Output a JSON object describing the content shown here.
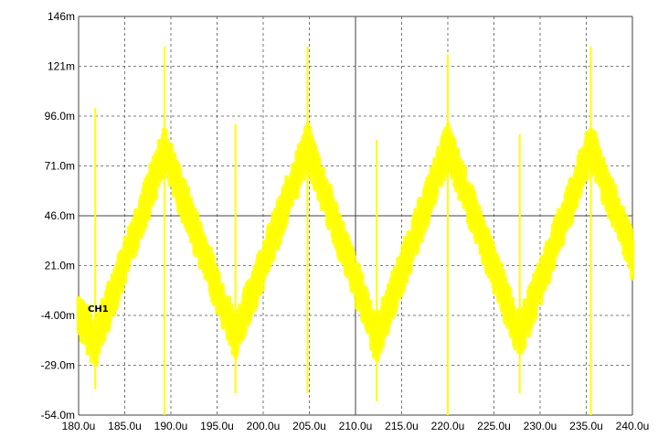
{
  "chart_data": {
    "type": "line",
    "title": "",
    "xlabel": "",
    "ylabel": "",
    "xlim": [
      180.0,
      240.0
    ],
    "ylim": [
      -54.0,
      146.0
    ],
    "x_unit": "u",
    "y_unit": "m",
    "grid": true,
    "legend": "none",
    "x_ticks": [
      "180.0u",
      "185.0u",
      "190.0u",
      "195.0u",
      "200.0u",
      "205.0u",
      "210.0u",
      "215.0u",
      "220.0u",
      "225.0u",
      "230.0u",
      "235.0u",
      "240.0u"
    ],
    "y_ticks": [
      "146m",
      "121m",
      "96.0m",
      "71.0m",
      "46.0m",
      "21.0m",
      "-4.00m",
      "-29.0m",
      "-54.0m"
    ],
    "series": [
      {
        "label": "CH1",
        "color": "#ffff00",
        "x": [
          180.0,
          181.8,
          189.3,
          197.0,
          204.8,
          212.3,
          220.0,
          227.8,
          235.5,
          240.0
        ],
        "y": [
          -3.0,
          -18.0,
          79.0,
          -15.0,
          81.0,
          -16.0,
          81.0,
          -15.0,
          81.0,
          26.0
        ],
        "spikes": [
          {
            "x": 181.8,
            "peak": 100.0,
            "dip": -41.0
          },
          {
            "x": 189.3,
            "peak": 131.0,
            "dip": -54.0
          },
          {
            "x": 197.0,
            "peak": 92.0,
            "dip": -43.0
          },
          {
            "x": 204.8,
            "peak": 131.0,
            "dip": -43.0
          },
          {
            "x": 212.3,
            "peak": 84.0,
            "dip": -47.0
          },
          {
            "x": 220.0,
            "peak": 127.0,
            "dip": -54.0
          },
          {
            "x": 227.8,
            "peak": 87.0,
            "dip": -43.0
          },
          {
            "x": 235.5,
            "peak": 131.0,
            "dip": -54.0
          }
        ]
      }
    ]
  }
}
